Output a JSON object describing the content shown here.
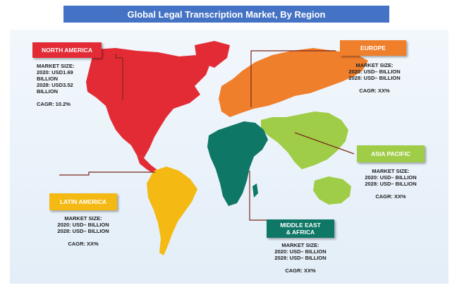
{
  "title": "Global Legal Transcription Market, By Region",
  "colors": {
    "title_bg": "#4472c4",
    "north_america": "#e32b35",
    "europe": "#f07f2c",
    "asia_pacific": "#a0cd48",
    "middle_east_africa": "#0e7766",
    "latin_america": "#f4b912"
  },
  "regions": {
    "north_america": {
      "label": "NORTH AMERICA",
      "market_size_label": "MARKET SIZE:",
      "line_2020_a": "2020: USD1.69",
      "line_2020_b": "BILLION",
      "line_2028_a": "2028: USD3.52",
      "line_2028_b": "BILLION",
      "cagr": "CAGR: 10.2%"
    },
    "europe": {
      "label": "EUROPE",
      "market_size_label": "MARKET SIZE:",
      "line_2020": "2020: USD– BILLION",
      "line_2028": "2028: USD– BILLION",
      "cagr": "CAGR: XX%"
    },
    "asia_pacific": {
      "label": "ASIA PACIFIC",
      "market_size_label": "MARKET SIZE:",
      "line_2020": "2020: USD– BILLION",
      "line_2028": "2028: USD– BILLION",
      "cagr": "CAGR: XX%"
    },
    "latin_america": {
      "label": "LATIN AMERICA",
      "market_size_label": "MARKET SIZE:",
      "line_2020": "2020: USD– BILLION",
      "line_2028": "2028: USD– BILLION",
      "cagr": "CAGR: XX%"
    },
    "middle_east_africa": {
      "label_line1": "MIDDLE EAST",
      "label_line2": "& AFRICA",
      "market_size_label": "MARKET SIZE:",
      "line_2020": "2020: USD– BILLION",
      "line_2028": "2028: USD– BILLION",
      "cagr": "CAGR: XX%"
    }
  }
}
